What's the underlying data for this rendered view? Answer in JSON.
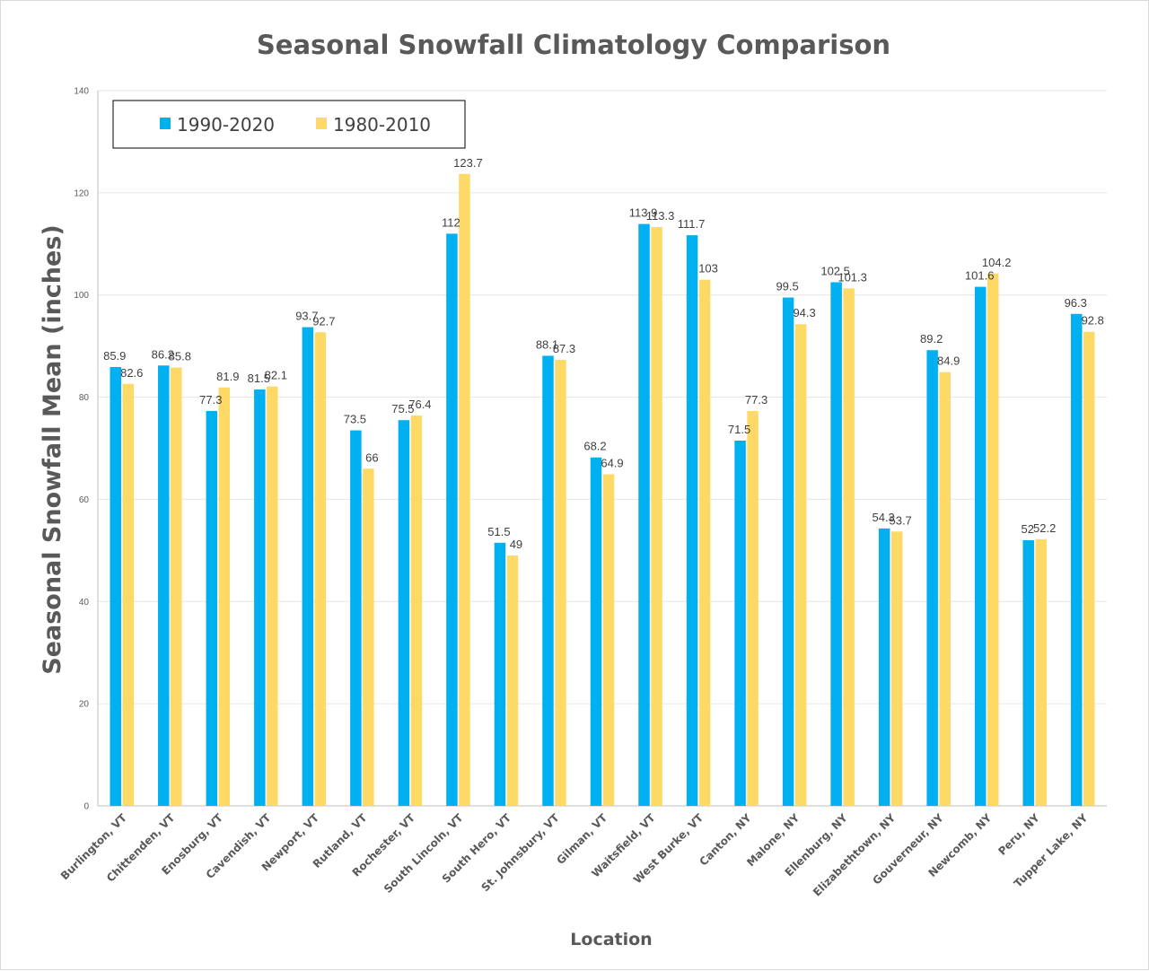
{
  "colors": {
    "series_1990_2020": "#00b0f0",
    "series_1980_2010": "#ffd966",
    "gridline": "#e6e6e6",
    "axis": "#bfbfbf",
    "text": "#595959"
  },
  "chart_data": {
    "type": "bar",
    "title": "Seasonal Snowfall Climatology Comparison",
    "xlabel": "Location",
    "ylabel": "Seasonal Snowfall Mean (inches)",
    "ylim": [
      0,
      140
    ],
    "yticks": [
      0,
      20,
      40,
      60,
      80,
      100,
      120,
      140
    ],
    "grid": true,
    "legend_position": "top-left",
    "categories": [
      "Burlington, VT",
      "Chittenden, VT",
      "Enosburg, VT",
      "Cavendish, VT",
      "Newport, VT",
      "Rutland, VT",
      "Rochester, VT",
      "South Lincoln, VT",
      "South Hero, VT",
      "St. Johnsbury, VT",
      "Gilman, VT",
      "Waitsfield, VT",
      "West Burke, VT",
      "Canton, NY",
      "Malone, NY",
      "Ellenburg, NY",
      "Elizabethtown, NY",
      "Gouverneur, NY",
      "Newcomb, NY",
      "Peru, NY",
      "Tupper Lake, NY"
    ],
    "series": [
      {
        "name": "1990-2020",
        "values": [
          85.9,
          86.2,
          77.3,
          81.5,
          93.7,
          73.5,
          75.5,
          112,
          51.5,
          88.1,
          68.2,
          113.9,
          111.7,
          71.5,
          99.5,
          102.5,
          54.3,
          89.2,
          101.6,
          52,
          96.3
        ],
        "labels": [
          "85.9",
          "86.2",
          "77.3",
          "81.5",
          "93.7",
          "73.5",
          "75.5",
          "112",
          "51.5",
          "88.1",
          "68.2",
          "113.9",
          "111.7",
          "71.5",
          "99.5",
          "102.5",
          "54.3",
          "89.2",
          "101.6",
          "52",
          "96.3"
        ]
      },
      {
        "name": "1980-2010",
        "values": [
          82.6,
          85.8,
          81.9,
          82.1,
          92.7,
          66,
          76.4,
          123.7,
          49,
          87.3,
          64.9,
          113.3,
          103,
          77.3,
          94.3,
          101.3,
          53.7,
          84.9,
          104.2,
          52.2,
          92.8
        ],
        "labels": [
          "82.6",
          "85.8",
          "81.9",
          "82.1",
          "92.7",
          "66",
          "76.4",
          "123.7",
          "49",
          "87.3",
          "64.9",
          "113.3",
          "103",
          "77.3",
          "94.3",
          "101.3",
          "53.7",
          "84.9",
          "104.2",
          "52.2",
          "92.8"
        ]
      }
    ]
  }
}
